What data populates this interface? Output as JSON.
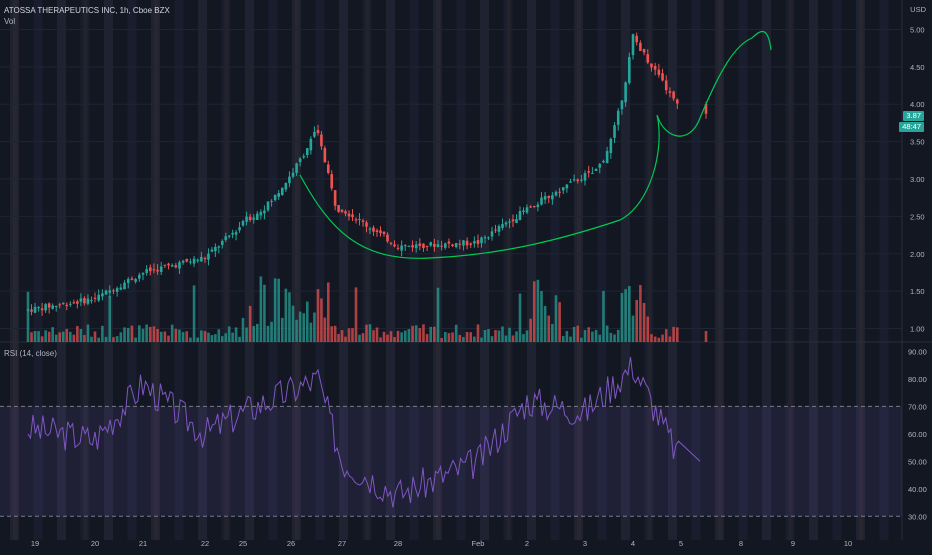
{
  "header": {
    "title": "ATOSSA THERAPEUTICS INC, 1h, Cboe BZX",
    "volume_label": "Vol",
    "currency": "USD"
  },
  "rsi": {
    "label": "RSI (14, close)",
    "axis_ticks": [
      "90.00",
      "80.00",
      "70.00",
      "60.00",
      "50.00",
      "40.00",
      "30.00"
    ],
    "upper_band": 70,
    "lower_band": 30
  },
  "price_axis": {
    "ticks": [
      "5.00",
      "4.50",
      "4.00",
      "3.50",
      "3.00",
      "2.50",
      "2.00",
      "1.50",
      "1.00"
    ],
    "last_price_label": "3.87",
    "countdown_label": "48:47"
  },
  "time_axis": {
    "ticks": [
      "19",
      "20",
      "21",
      "22",
      "25",
      "26",
      "27",
      "28",
      "Feb",
      "2",
      "3",
      "4",
      "5",
      "8",
      "9",
      "10"
    ]
  },
  "colors": {
    "background": "#131722",
    "up": "#26a69a",
    "down": "#ef5350",
    "rsi_line": "#7e57c2",
    "drawing": "#00c853"
  },
  "chart_data": [
    {
      "type": "candlestick",
      "title": "ATOSSA THERAPEUTICS INC, 1h, Cboe BZX",
      "x": [
        "19",
        "20",
        "21",
        "22",
        "25",
        "26",
        "27",
        "28",
        "Feb",
        "2",
        "3",
        "4",
        "5"
      ],
      "close_approx": [
        1.25,
        1.4,
        1.75,
        1.95,
        2.4,
        3.65,
        2.6,
        2.1,
        2.15,
        2.6,
        3.05,
        4.6,
        3.87
      ],
      "ylim": [
        0.9,
        5.1
      ],
      "ylabel": "USD",
      "last_price": 3.87
    },
    {
      "type": "line",
      "title": "RSI (14, close)",
      "x": [
        "19",
        "20",
        "21",
        "22",
        "25",
        "26",
        "27",
        "28",
        "Feb",
        "2",
        "3",
        "4",
        "5"
      ],
      "values": [
        62,
        58,
        78,
        60,
        68,
        80,
        50,
        38,
        50,
        72,
        68,
        85,
        50
      ],
      "ylim": [
        25,
        92
      ]
    }
  ]
}
